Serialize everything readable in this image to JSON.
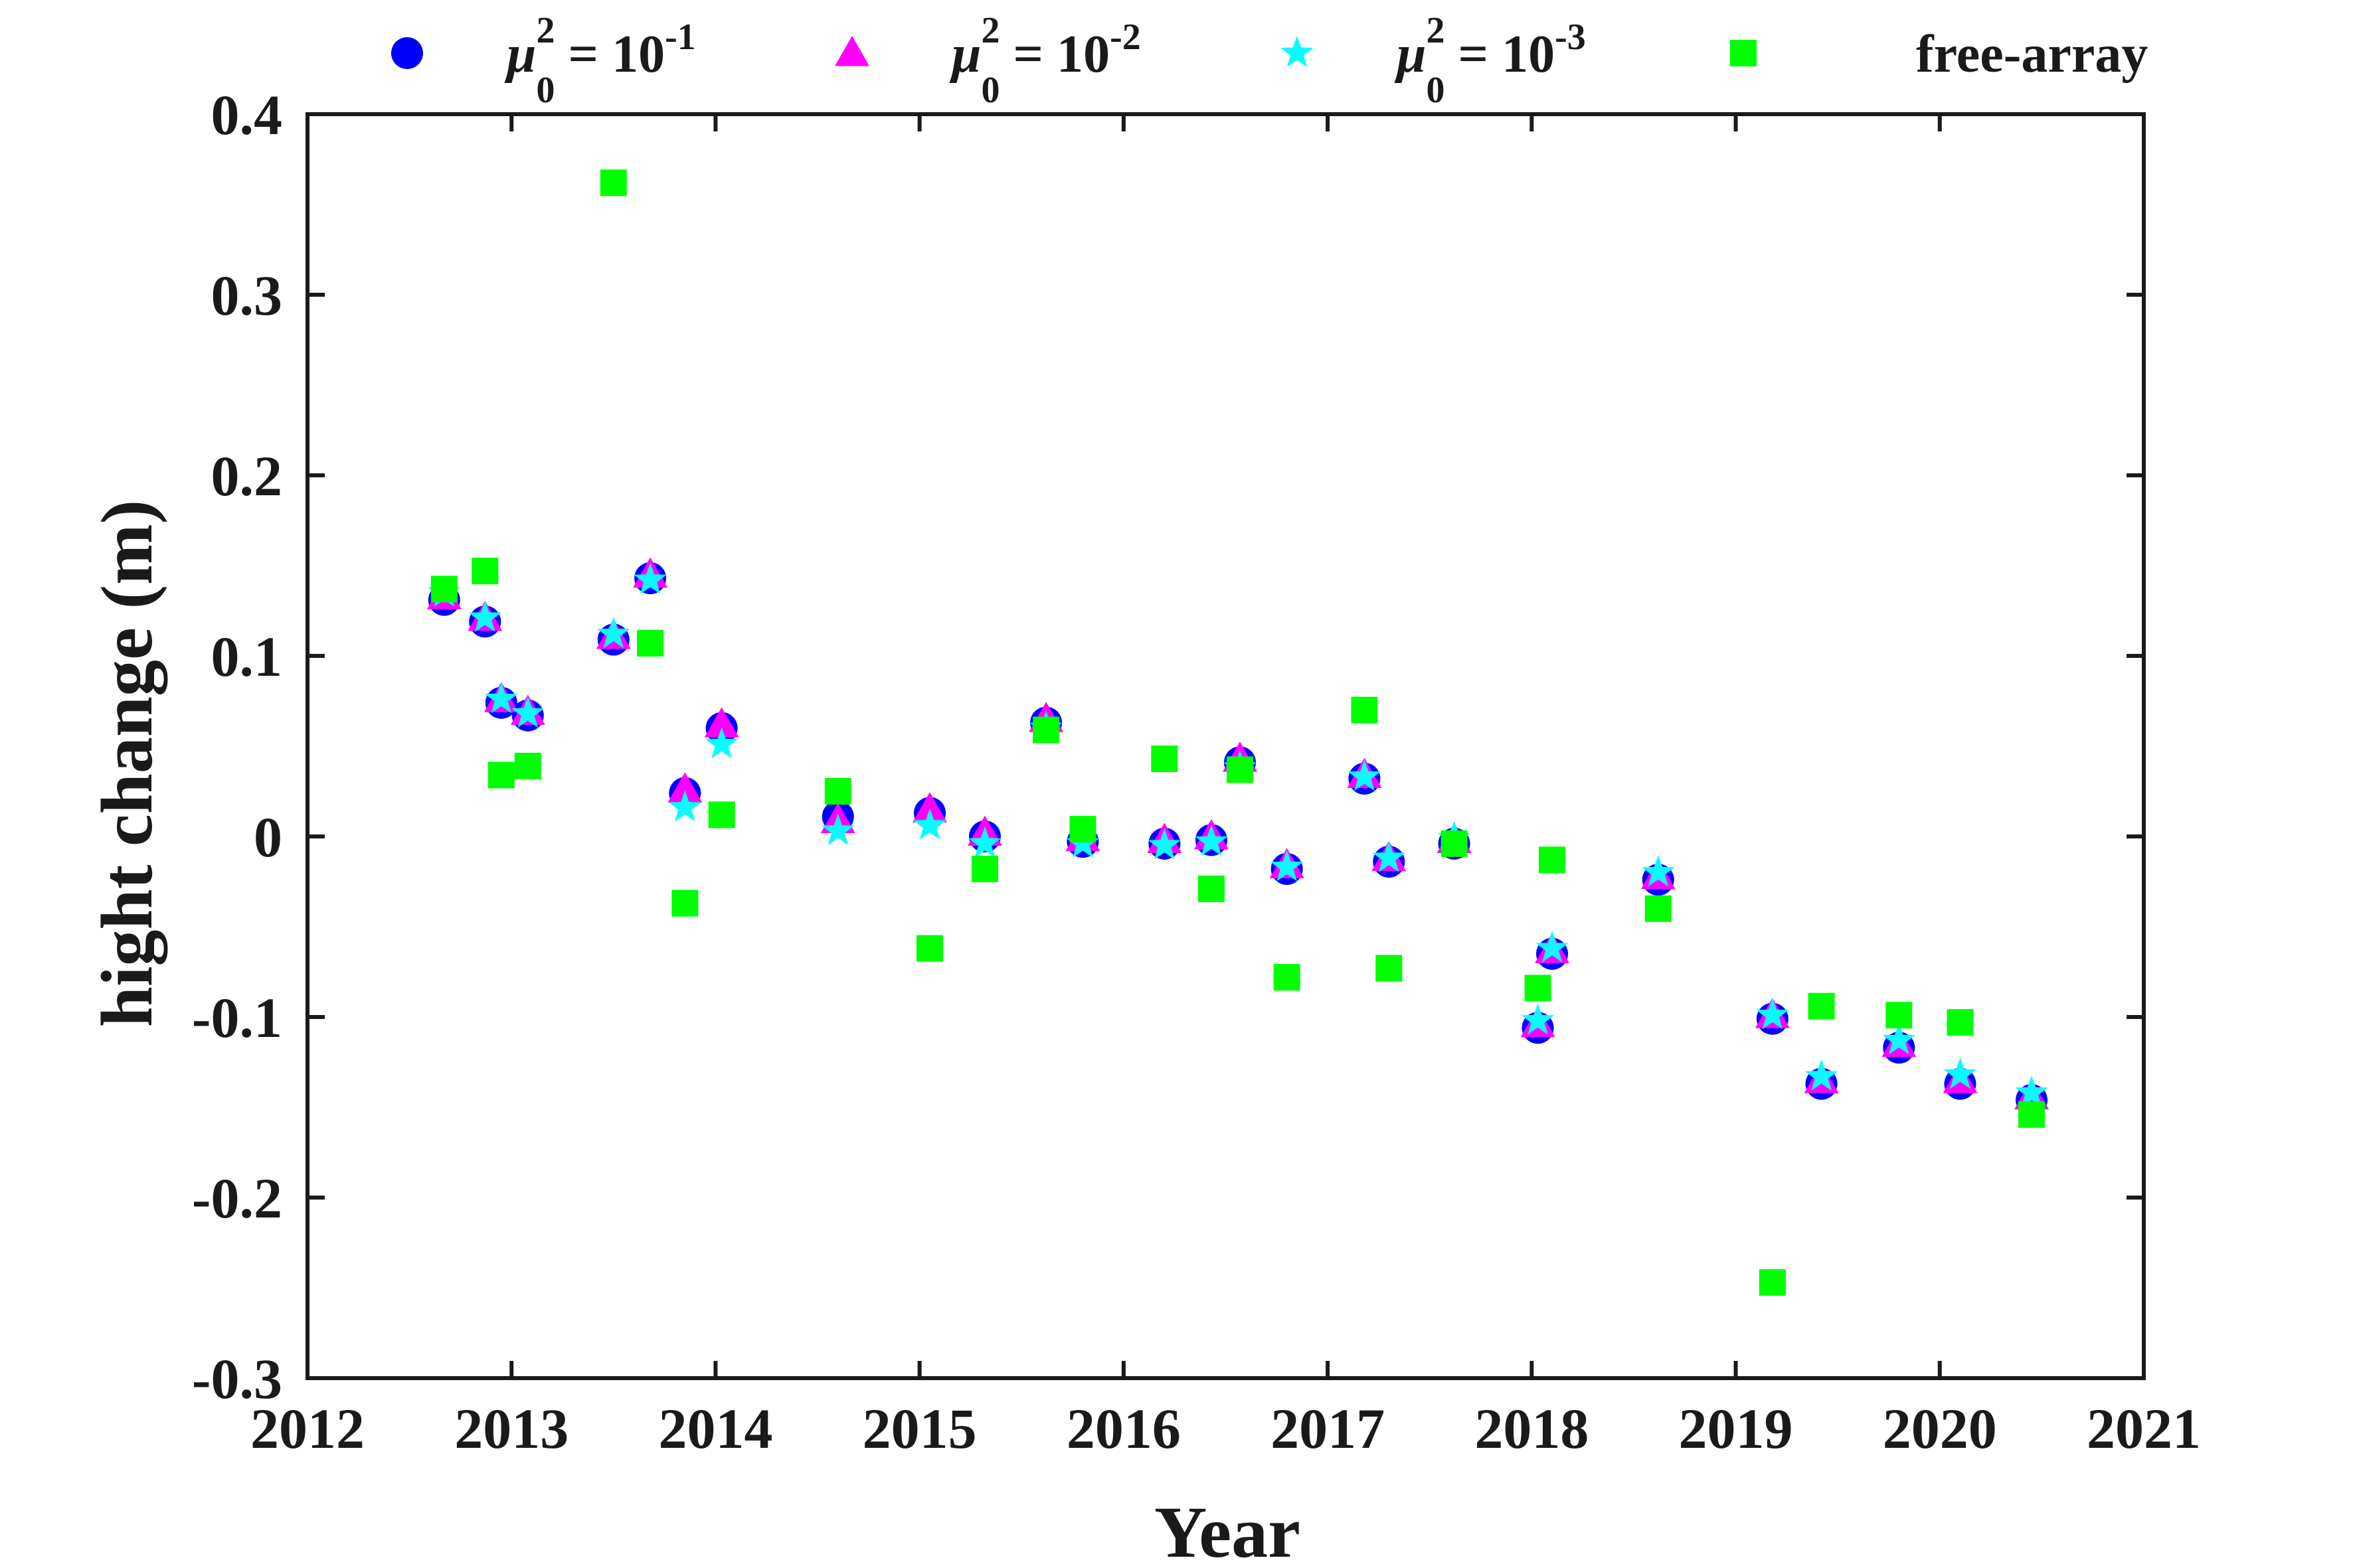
{
  "chart_data": {
    "type": "scatter",
    "xlabel": "Year",
    "ylabel": "hight change (m)",
    "xlim": [
      2012,
      2021
    ],
    "ylim": [
      -0.3,
      0.4
    ],
    "xticks": [
      "2012",
      "2013",
      "2014",
      "2015",
      "2016",
      "2017",
      "2018",
      "2019",
      "2020",
      "2021"
    ],
    "yticks": [
      "-0.3",
      "-0.2",
      "-0.1",
      "0",
      "0.1",
      "0.2",
      "0.3",
      "0.4"
    ],
    "grid": false,
    "legend_position": "top",
    "series": [
      {
        "legend": {
          "symbol": "μ",
          "sub": "0",
          "sup": "2",
          "mid": " = 10",
          "exp": "-1"
        },
        "marker": "circle",
        "color": "#0000ff",
        "points": [
          [
            2012.67,
            0.131
          ],
          [
            2012.87,
            0.119
          ],
          [
            2012.95,
            0.074
          ],
          [
            2013.08,
            0.067
          ],
          [
            2013.5,
            0.109
          ],
          [
            2013.68,
            0.143
          ],
          [
            2013.85,
            0.024
          ],
          [
            2014.03,
            0.06
          ],
          [
            2014.6,
            0.011
          ],
          [
            2015.05,
            0.013
          ],
          [
            2015.32,
            0.0
          ],
          [
            2015.62,
            0.063
          ],
          [
            2015.8,
            -0.003
          ],
          [
            2016.2,
            -0.004
          ],
          [
            2016.43,
            -0.002
          ],
          [
            2016.57,
            0.041
          ],
          [
            2016.8,
            -0.018
          ],
          [
            2017.18,
            0.032
          ],
          [
            2017.3,
            -0.014
          ],
          [
            2017.62,
            -0.004
          ],
          [
            2018.03,
            -0.106
          ],
          [
            2018.1,
            -0.065
          ],
          [
            2018.62,
            -0.024
          ],
          [
            2019.18,
            -0.101
          ],
          [
            2019.42,
            -0.137
          ],
          [
            2019.8,
            -0.117
          ],
          [
            2020.1,
            -0.137
          ],
          [
            2020.45,
            -0.146
          ]
        ]
      },
      {
        "legend": {
          "symbol": "μ",
          "sub": "0",
          "sup": "2",
          "mid": " = 10",
          "exp": "-2"
        },
        "marker": "triangle",
        "color": "#ff00ff",
        "points": [
          [
            2012.67,
            0.133
          ],
          [
            2012.87,
            0.121
          ],
          [
            2012.95,
            0.076
          ],
          [
            2013.08,
            0.069
          ],
          [
            2013.5,
            0.111
          ],
          [
            2013.68,
            0.145
          ],
          [
            2013.85,
            0.026
          ],
          [
            2014.03,
            0.062
          ],
          [
            2014.6,
            0.009
          ],
          [
            2015.05,
            0.015
          ],
          [
            2015.32,
            0.002
          ],
          [
            2015.62,
            0.065
          ],
          [
            2015.8,
            -0.001
          ],
          [
            2016.2,
            -0.002
          ],
          [
            2016.43,
            0.0
          ],
          [
            2016.57,
            0.043
          ],
          [
            2016.8,
            -0.016
          ],
          [
            2017.18,
            0.034
          ],
          [
            2017.3,
            -0.012
          ],
          [
            2017.62,
            -0.002
          ],
          [
            2018.03,
            -0.104
          ],
          [
            2018.1,
            -0.063
          ],
          [
            2018.62,
            -0.022
          ],
          [
            2019.18,
            -0.099
          ],
          [
            2019.42,
            -0.135
          ],
          [
            2019.8,
            -0.115
          ],
          [
            2020.1,
            -0.135
          ],
          [
            2020.45,
            -0.144
          ]
        ]
      },
      {
        "legend": {
          "symbol": "μ",
          "sub": "0",
          "sup": "2",
          "mid": " = 10",
          "exp": "-3"
        },
        "marker": "star",
        "color": "#00ffff",
        "points": [
          [
            2012.67,
            0.135
          ],
          [
            2012.87,
            0.121
          ],
          [
            2012.95,
            0.076
          ],
          [
            2013.08,
            0.068
          ],
          [
            2013.5,
            0.112
          ],
          [
            2013.68,
            0.142
          ],
          [
            2013.85,
            0.016
          ],
          [
            2014.03,
            0.051
          ],
          [
            2014.6,
            0.003
          ],
          [
            2015.05,
            0.006
          ],
          [
            2015.32,
            -0.004
          ],
          [
            2015.62,
            0.06
          ],
          [
            2015.8,
            -0.004
          ],
          [
            2016.2,
            -0.005
          ],
          [
            2016.43,
            -0.003
          ],
          [
            2016.57,
            0.038
          ],
          [
            2016.8,
            -0.017
          ],
          [
            2017.18,
            0.033
          ],
          [
            2017.3,
            -0.012
          ],
          [
            2017.62,
            -0.001
          ],
          [
            2018.03,
            -0.102
          ],
          [
            2018.1,
            -0.062
          ],
          [
            2018.62,
            -0.02
          ],
          [
            2019.18,
            -0.099
          ],
          [
            2019.42,
            -0.133
          ],
          [
            2019.8,
            -0.113
          ],
          [
            2020.1,
            -0.132
          ],
          [
            2020.45,
            -0.142
          ]
        ]
      },
      {
        "name": "free-array",
        "marker": "square",
        "color": "#00ff00",
        "points": [
          [
            2012.67,
            0.137
          ],
          [
            2012.87,
            0.147
          ],
          [
            2012.95,
            0.034
          ],
          [
            2013.08,
            0.039
          ],
          [
            2013.5,
            0.362
          ],
          [
            2013.68,
            0.107
          ],
          [
            2013.85,
            -0.037
          ],
          [
            2014.03,
            0.012
          ],
          [
            2014.6,
            0.025
          ],
          [
            2015.05,
            -0.062
          ],
          [
            2015.32,
            -0.018
          ],
          [
            2015.62,
            0.059
          ],
          [
            2015.8,
            0.004
          ],
          [
            2016.2,
            0.043
          ],
          [
            2016.43,
            -0.029
          ],
          [
            2016.57,
            0.037
          ],
          [
            2016.8,
            -0.078
          ],
          [
            2017.18,
            0.07
          ],
          [
            2017.3,
            -0.073
          ],
          [
            2017.62,
            -0.004
          ],
          [
            2018.03,
            -0.084
          ],
          [
            2018.1,
            -0.013
          ],
          [
            2018.62,
            -0.04
          ],
          [
            2019.18,
            -0.247
          ],
          [
            2019.42,
            -0.094
          ],
          [
            2019.8,
            -0.099
          ],
          [
            2020.1,
            -0.103
          ],
          [
            2020.45,
            -0.154
          ]
        ]
      }
    ]
  }
}
